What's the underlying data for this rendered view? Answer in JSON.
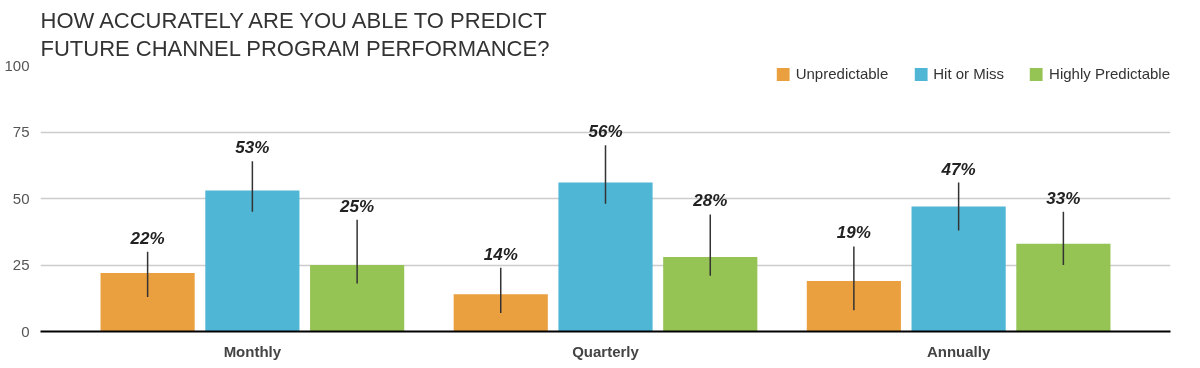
{
  "chart_data": {
    "type": "bar",
    "title": "HOW ACCURATELY ARE YOU ABLE TO PREDICT\nFUTURE CHANNEL PROGRAM PERFORMANCE?",
    "categories": [
      "Monthly",
      "Quarterly",
      "Annually"
    ],
    "series": [
      {
        "name": "Unpredictable",
        "color": "#eba03f",
        "values": [
          22,
          14,
          19
        ],
        "errors": [
          [
            13,
            30
          ],
          [
            7,
            24
          ],
          [
            8,
            32
          ]
        ],
        "value_labels": [
          "22%",
          "14%",
          "19%"
        ]
      },
      {
        "name": "Hit or Miss",
        "color": "#4fb6d6",
        "values": [
          53,
          56,
          47
        ],
        "errors": [
          [
            45,
            64
          ],
          [
            48,
            70
          ],
          [
            38,
            56
          ]
        ],
        "value_labels": [
          "53%",
          "56%",
          "47%"
        ]
      },
      {
        "name": "Highly Predictable",
        "color": "#95c354",
        "values": [
          25,
          28,
          33
        ],
        "errors": [
          [
            18,
            42
          ],
          [
            21,
            44
          ],
          [
            25,
            45
          ]
        ],
        "value_labels": [
          "25%",
          "28%",
          "33%"
        ]
      }
    ],
    "ylim": [
      0,
      100
    ],
    "yticks": [
      0,
      25,
      50,
      75,
      100
    ],
    "grid": "y",
    "legend": "top right"
  }
}
